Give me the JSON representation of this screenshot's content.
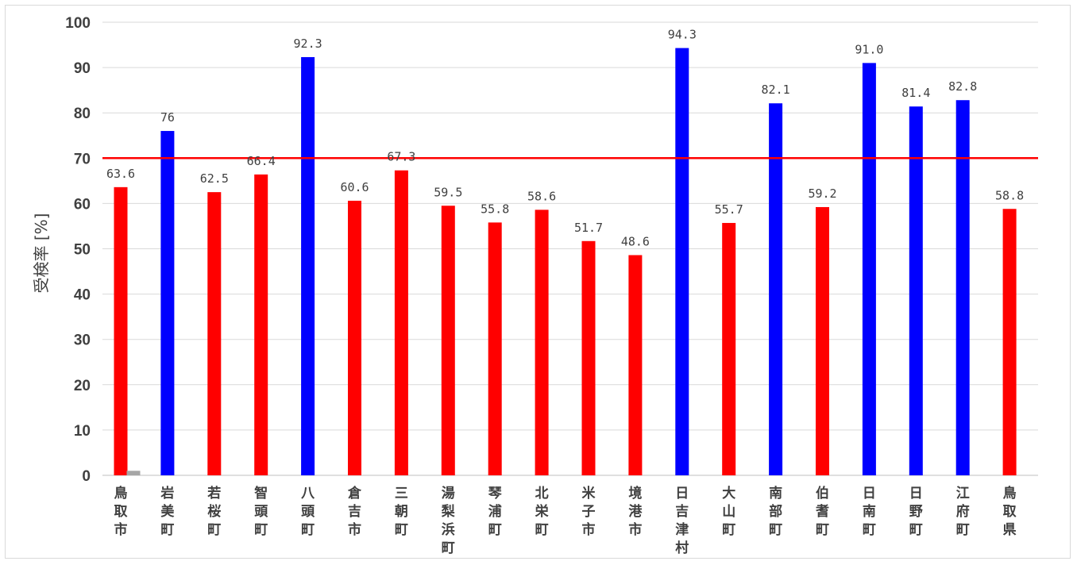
{
  "chart_data": {
    "type": "bar",
    "title": "",
    "ylabel": "受検率 [%]",
    "xlabel": "",
    "ylim": [
      0,
      100
    ],
    "yticks": [
      0,
      10,
      20,
      30,
      40,
      50,
      60,
      70,
      80,
      90,
      100
    ],
    "grid": true,
    "reference_line": {
      "value": 70,
      "color": "#ff0000"
    },
    "colors": {
      "below": "#ff0000",
      "above": "#0000ff",
      "small": "#a6a6a6"
    },
    "categories": [
      "鳥取市",
      "岩美町",
      "若桜町",
      "智頭町",
      "八頭町",
      "倉吉市",
      "三朝町",
      "湯梨浜町",
      "琴浦町",
      "北栄町",
      "米子市",
      "境港市",
      "日吉津村",
      "大山町",
      "南部町",
      "伯耆町",
      "日南町",
      "日野町",
      "江府町",
      "鳥取県"
    ],
    "values": [
      63.6,
      76,
      62.5,
      66.4,
      92.3,
      60.6,
      67.3,
      59.5,
      55.8,
      58.6,
      51.7,
      48.6,
      94.3,
      55.7,
      82.1,
      59.2,
      91.0,
      81.4,
      82.8,
      58.8
    ],
    "value_labels": [
      "63.6",
      "76",
      "62.5",
      "66.4",
      "92.3",
      "60.6",
      "67.3",
      "59.5",
      "55.8",
      "58.6",
      "51.7",
      "48.6",
      "94.3",
      "55.7",
      "82.1",
      "59.2",
      "91.0",
      "81.4",
      "82.8",
      "58.8"
    ],
    "bar_colors": [
      "#ff0000",
      "#0000ff",
      "#ff0000",
      "#ff0000",
      "#0000ff",
      "#ff0000",
      "#ff0000",
      "#ff0000",
      "#ff0000",
      "#ff0000",
      "#ff0000",
      "#ff0000",
      "#0000ff",
      "#ff0000",
      "#0000ff",
      "#ff0000",
      "#0000ff",
      "#0000ff",
      "#0000ff",
      "#ff0000"
    ],
    "secondary_series": {
      "category_index": 0,
      "value": 1.0,
      "color": "#a6a6a6"
    }
  }
}
